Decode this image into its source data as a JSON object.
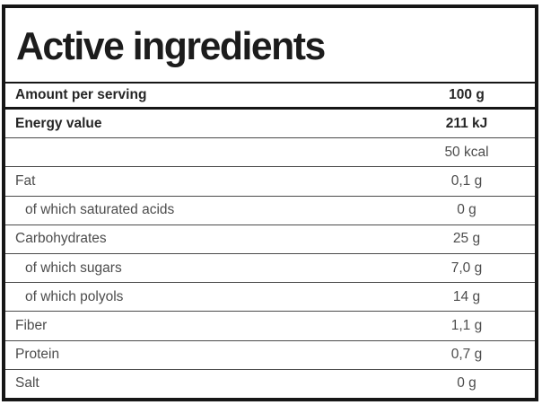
{
  "header": {
    "title": "Active ingredients"
  },
  "table": {
    "header": {
      "label": "Amount per serving",
      "value": "100 g"
    },
    "rows": [
      {
        "label": "Energy value",
        "value": "211 kJ",
        "bold": true,
        "indent": false
      },
      {
        "label": "",
        "value": "50 kcal",
        "bold": false,
        "indent": false
      },
      {
        "label": "Fat",
        "value": "0,1 g",
        "bold": false,
        "indent": false
      },
      {
        "label": "of which saturated acids",
        "value": "0 g",
        "bold": false,
        "indent": true
      },
      {
        "label": "Carbohydrates",
        "value": "25 g",
        "bold": false,
        "indent": false
      },
      {
        "label": "of which sugars",
        "value": "7,0 g",
        "bold": false,
        "indent": true
      },
      {
        "label": "of which polyols",
        "value": "14 g",
        "bold": false,
        "indent": true
      },
      {
        "label": "Fiber",
        "value": "1,1 g",
        "bold": false,
        "indent": false
      },
      {
        "label": "Protein",
        "value": "0,7 g",
        "bold": false,
        "indent": false
      },
      {
        "label": "Salt",
        "value": "0 g",
        "bold": false,
        "indent": false
      }
    ]
  },
  "colors": {
    "border_strong": "#161616",
    "separator": "#4a4a4a",
    "text_bold": "#262626",
    "text_regular": "#4c4c4c"
  }
}
